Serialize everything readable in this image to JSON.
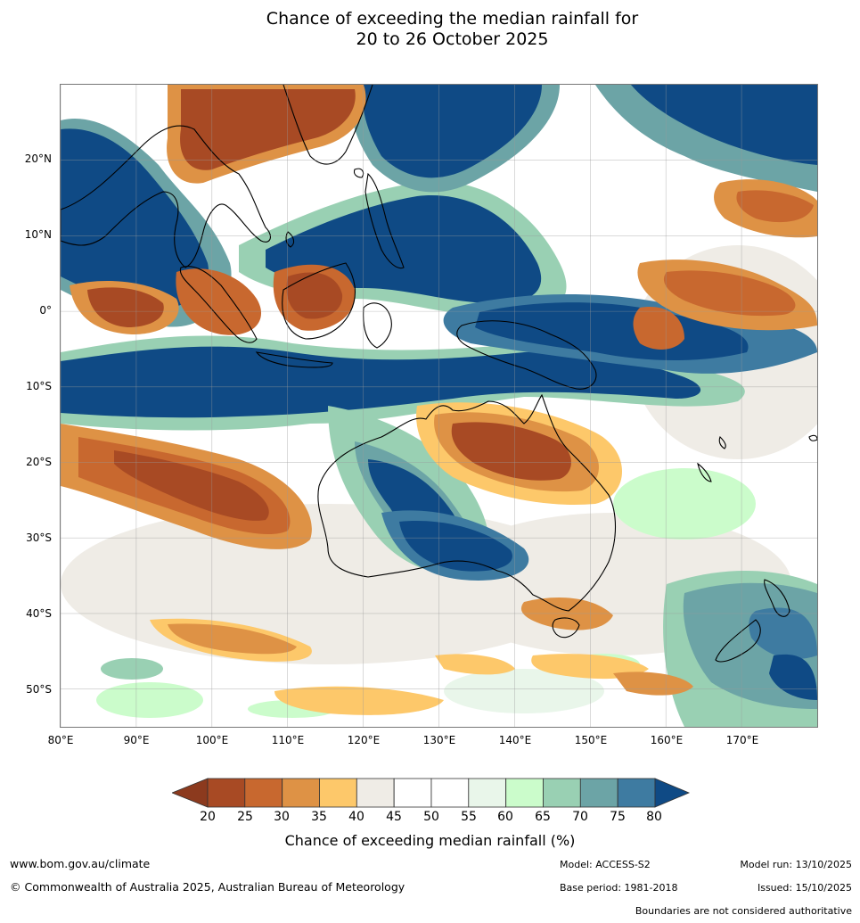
{
  "title": {
    "line1": "Chance of exceeding the median rainfall for",
    "line2": "20 to 26 October 2025"
  },
  "map": {
    "region": "Indo-Pacific and Australia",
    "extent": {
      "lon_min": 80,
      "lon_max": 180,
      "lat_min": -55,
      "lat_max": 30
    },
    "lat_labels": [
      {
        "lat": 20,
        "label": "20°N"
      },
      {
        "lat": 10,
        "label": "10°N"
      },
      {
        "lat": 0,
        "label": "0°"
      },
      {
        "lat": -10,
        "label": "10°S"
      },
      {
        "lat": -20,
        "label": "20°S"
      },
      {
        "lat": -30,
        "label": "30°S"
      },
      {
        "lat": -40,
        "label": "40°S"
      },
      {
        "lat": -50,
        "label": "50°S"
      }
    ],
    "lon_labels": [
      {
        "lon": 80,
        "label": "80°E"
      },
      {
        "lon": 90,
        "label": "90°E"
      },
      {
        "lon": 100,
        "label": "100°E"
      },
      {
        "lon": 110,
        "label": "110°E"
      },
      {
        "lon": 120,
        "label": "120°E"
      },
      {
        "lon": 130,
        "label": "130°E"
      },
      {
        "lon": 140,
        "label": "140°E"
      },
      {
        "lon": 150,
        "label": "150°E"
      },
      {
        "lon": 160,
        "label": "160°E"
      },
      {
        "lon": 170,
        "label": "170°E"
      }
    ]
  },
  "colorbar": {
    "ticks": [
      "20",
      "25",
      "30",
      "35",
      "40",
      "45",
      "50",
      "55",
      "60",
      "65",
      "70",
      "75",
      "80"
    ],
    "colors": [
      "#a84a24",
      "#c8682f",
      "#de9245",
      "#fdc86a",
      "#efece6",
      "#ffffff",
      "#ffffff",
      "#e9f6ea",
      "#cbfccb",
      "#99d0b3",
      "#6ca4a6",
      "#3e7ba1"
    ],
    "under_color": "#8c3a1e",
    "over_color": "#0f4a85",
    "label": "Chance of exceeding median rainfall (%)"
  },
  "footer": {
    "website": "www.bom.gov.au/climate",
    "copyright": "© Commonwealth of Australia 2025, Australian Bureau of Meteorology",
    "model": "Model: ACCESS-S2",
    "base_period": "Base period: 1981-2018",
    "model_run": "Model run: 13/10/2025",
    "issued": "Issued: 15/10/2025",
    "disclaimer": "Boundaries are not considered authoritative"
  }
}
